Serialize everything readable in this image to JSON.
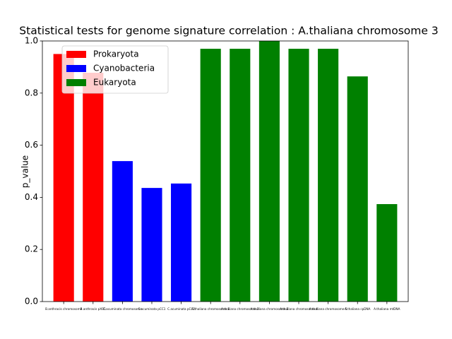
{
  "chart_data": {
    "type": "bar",
    "title": "Statistical tests for genome signature correlation : A.thaliana chromosome 3",
    "ylabel": "p_value",
    "categories": [
      "B.anthracis chromosome",
      "B.anthracis pXO1",
      "C.acuminata chromosome",
      "C.acuminata pCC1",
      "C.acuminata pCC2",
      "A.thaliana chromosome 1",
      "A.thaliana chromosome 2",
      "A.thaliana chromosome 3",
      "A.thaliana chromosome 4",
      "A.thaliana chromosome 5",
      "A.thaliana cpDNA",
      "A.thaliana mtDNA"
    ],
    "values": [
      0.95,
      0.878,
      0.539,
      0.436,
      0.453,
      0.97,
      0.97,
      1.0,
      0.97,
      0.97,
      0.864,
      0.374
    ],
    "colors": [
      "#ff0000",
      "#ff0000",
      "#0000ff",
      "#0000ff",
      "#0000ff",
      "#008000",
      "#008000",
      "#008000",
      "#008000",
      "#008000",
      "#008000",
      "#008000"
    ],
    "legend": [
      {
        "name": "Prokaryota",
        "color": "#ff0000"
      },
      {
        "name": "Cyanobacteria",
        "color": "#0000ff"
      },
      {
        "name": "Eukaryota",
        "color": "#008000"
      }
    ],
    "legend_position": "upper left",
    "ylim": [
      0,
      1
    ],
    "yticks": [
      {
        "value": 0,
        "label": "0.0"
      },
      {
        "value": 0.2,
        "label": "0.2"
      },
      {
        "value": 0.4,
        "label": "0.4"
      },
      {
        "value": 0.6,
        "label": "0.6"
      },
      {
        "value": 0.8,
        "label": "0.8"
      },
      {
        "value": 1,
        "label": "1.0"
      }
    ]
  }
}
